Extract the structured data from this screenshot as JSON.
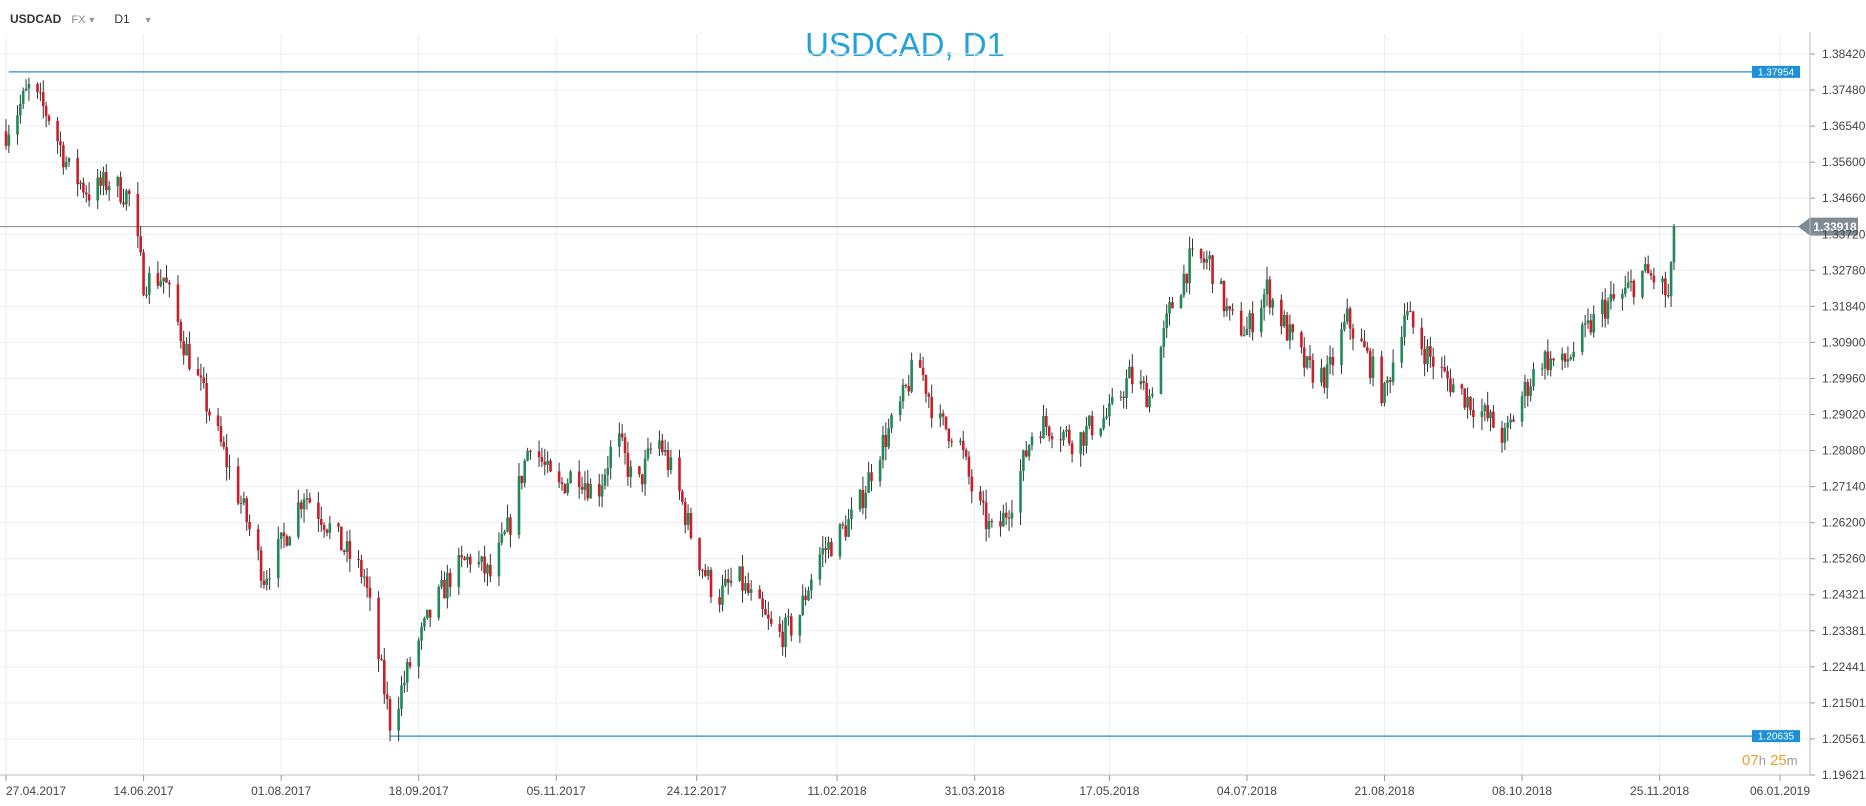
{
  "header": {
    "symbol": "USDCAD",
    "market": "FX",
    "timeframe": "D1"
  },
  "countdown": {
    "hours": "07",
    "hours_unit": "h",
    "minutes": "25",
    "minutes_unit": "m"
  },
  "colors": {
    "up": "#1f8a55",
    "down": "#c8202a",
    "level_line": "#1e90d8",
    "current_line": "#7f8c96",
    "title": "#21a2de"
  },
  "chart_data": {
    "type": "candlestick",
    "title": "USDCAD, D1",
    "y_ticks": [
      "1.19621",
      "1.20561",
      "1.21501",
      "1.22441",
      "1.23381",
      "1.24321",
      "1.25260",
      "1.26200",
      "1.27140",
      "1.28080",
      "1.29020",
      "1.29960",
      "1.30900",
      "1.31840",
      "1.32780",
      "1.33720",
      "1.34660",
      "1.35600",
      "1.36540",
      "1.37480",
      "1.38420"
    ],
    "x_ticks": [
      "27.04.2017",
      "14.06.2017",
      "01.08.2017",
      "18.09.2017",
      "05.11.2017",
      "24.12.2017",
      "11.02.2018",
      "31.03.2018",
      "17.05.2018",
      "04.07.2018",
      "21.08.2018",
      "08.10.2018",
      "25.11.2018",
      "06.01.2019"
    ],
    "ylim": [
      1.19621,
      1.3842
    ],
    "grid": true,
    "levels": [
      {
        "label": "1.37954",
        "value": 1.37954,
        "start": "28.04.2017"
      },
      {
        "label": "1.20635",
        "value": 1.20635,
        "start": "08.09.2017"
      }
    ],
    "current": {
      "label": "1.33918",
      "value": 1.33918
    },
    "close_path": [
      {
        "date": "27.04.2017",
        "close": 1.364
      },
      {
        "date": "05.05.2017",
        "close": 1.375
      },
      {
        "date": "12.05.2017",
        "close": 1.368
      },
      {
        "date": "19.05.2017",
        "close": 1.354
      },
      {
        "date": "26.05.2017",
        "close": 1.348
      },
      {
        "date": "02.06.2017",
        "close": 1.351
      },
      {
        "date": "09.06.2017",
        "close": 1.347
      },
      {
        "date": "14.06.2017",
        "close": 1.325
      },
      {
        "date": "21.06.2017",
        "close": 1.326
      },
      {
        "date": "28.06.2017",
        "close": 1.309
      },
      {
        "date": "05.07.2017",
        "close": 1.295
      },
      {
        "date": "12.07.2017",
        "close": 1.28
      },
      {
        "date": "19.07.2017",
        "close": 1.265
      },
      {
        "date": "26.07.2017",
        "close": 1.248
      },
      {
        "date": "01.08.2017",
        "close": 1.256
      },
      {
        "date": "09.08.2017",
        "close": 1.27
      },
      {
        "date": "16.08.2017",
        "close": 1.263
      },
      {
        "date": "23.08.2017",
        "close": 1.255
      },
      {
        "date": "30.08.2017",
        "close": 1.248
      },
      {
        "date": "08.09.2017",
        "close": 1.21
      },
      {
        "date": "15.09.2017",
        "close": 1.225
      },
      {
        "date": "22.09.2017",
        "close": 1.238
      },
      {
        "date": "29.09.2017",
        "close": 1.248
      },
      {
        "date": "06.10.2017",
        "close": 1.253
      },
      {
        "date": "13.10.2017",
        "close": 1.248
      },
      {
        "date": "20.10.2017",
        "close": 1.262
      },
      {
        "date": "27.10.2017",
        "close": 1.284
      },
      {
        "date": "05.11.2017",
        "close": 1.27
      },
      {
        "date": "12.11.2017",
        "close": 1.276
      },
      {
        "date": "19.11.2017",
        "close": 1.269
      },
      {
        "date": "26.11.2017",
        "close": 1.285
      },
      {
        "date": "03.12.2017",
        "close": 1.27
      },
      {
        "date": "10.12.2017",
        "close": 1.285
      },
      {
        "date": "17.12.2017",
        "close": 1.272
      },
      {
        "date": "24.12.2017",
        "close": 1.254
      },
      {
        "date": "31.12.2017",
        "close": 1.242
      },
      {
        "date": "07.01.2018",
        "close": 1.248
      },
      {
        "date": "14.01.2018",
        "close": 1.24
      },
      {
        "date": "21.01.2018",
        "close": 1.232
      },
      {
        "date": "28.01.2018",
        "close": 1.236
      },
      {
        "date": "04.02.2018",
        "close": 1.253
      },
      {
        "date": "11.02.2018",
        "close": 1.258
      },
      {
        "date": "18.02.2018",
        "close": 1.265
      },
      {
        "date": "25.02.2018",
        "close": 1.28
      },
      {
        "date": "04.03.2018",
        "close": 1.29
      },
      {
        "date": "11.03.2018",
        "close": 1.305
      },
      {
        "date": "18.03.2018",
        "close": 1.288
      },
      {
        "date": "25.03.2018",
        "close": 1.285
      },
      {
        "date": "31.03.2018",
        "close": 1.268
      },
      {
        "date": "07.04.2018",
        "close": 1.258
      },
      {
        "date": "14.04.2018",
        "close": 1.27
      },
      {
        "date": "21.04.2018",
        "close": 1.288
      },
      {
        "date": "28.04.2018",
        "close": 1.287
      },
      {
        "date": "05.05.2018",
        "close": 1.283
      },
      {
        "date": "12.05.2018",
        "close": 1.288
      },
      {
        "date": "17.05.2018",
        "close": 1.29
      },
      {
        "date": "24.05.2018",
        "close": 1.3
      },
      {
        "date": "31.05.2018",
        "close": 1.295
      },
      {
        "date": "07.06.2018",
        "close": 1.317
      },
      {
        "date": "14.06.2018",
        "close": 1.33
      },
      {
        "date": "21.06.2018",
        "close": 1.33
      },
      {
        "date": "28.06.2018",
        "close": 1.315
      },
      {
        "date": "04.07.2018",
        "close": 1.312
      },
      {
        "date": "11.07.2018",
        "close": 1.323
      },
      {
        "date": "18.07.2018",
        "close": 1.312
      },
      {
        "date": "25.07.2018",
        "close": 1.302
      },
      {
        "date": "01.08.2018",
        "close": 1.3
      },
      {
        "date": "08.08.2018",
        "close": 1.315
      },
      {
        "date": "15.08.2018",
        "close": 1.305
      },
      {
        "date": "21.08.2018",
        "close": 1.295
      },
      {
        "date": "28.08.2018",
        "close": 1.317
      },
      {
        "date": "04.09.2018",
        "close": 1.307
      },
      {
        "date": "11.09.2018",
        "close": 1.3
      },
      {
        "date": "18.09.2018",
        "close": 1.295
      },
      {
        "date": "25.09.2018",
        "close": 1.29
      },
      {
        "date": "02.10.2018",
        "close": 1.284
      },
      {
        "date": "08.10.2018",
        "close": 1.295
      },
      {
        "date": "15.10.2018",
        "close": 1.305
      },
      {
        "date": "22.10.2018",
        "close": 1.303
      },
      {
        "date": "29.10.2018",
        "close": 1.31
      },
      {
        "date": "05.11.2018",
        "close": 1.318
      },
      {
        "date": "12.11.2018",
        "close": 1.321
      },
      {
        "date": "19.11.2018",
        "close": 1.327
      },
      {
        "date": "25.11.2018",
        "close": 1.325
      },
      {
        "date": "28.11.2018",
        "close": 1.32
      },
      {
        "date": "01.12.2018",
        "close": 1.3392
      }
    ]
  }
}
